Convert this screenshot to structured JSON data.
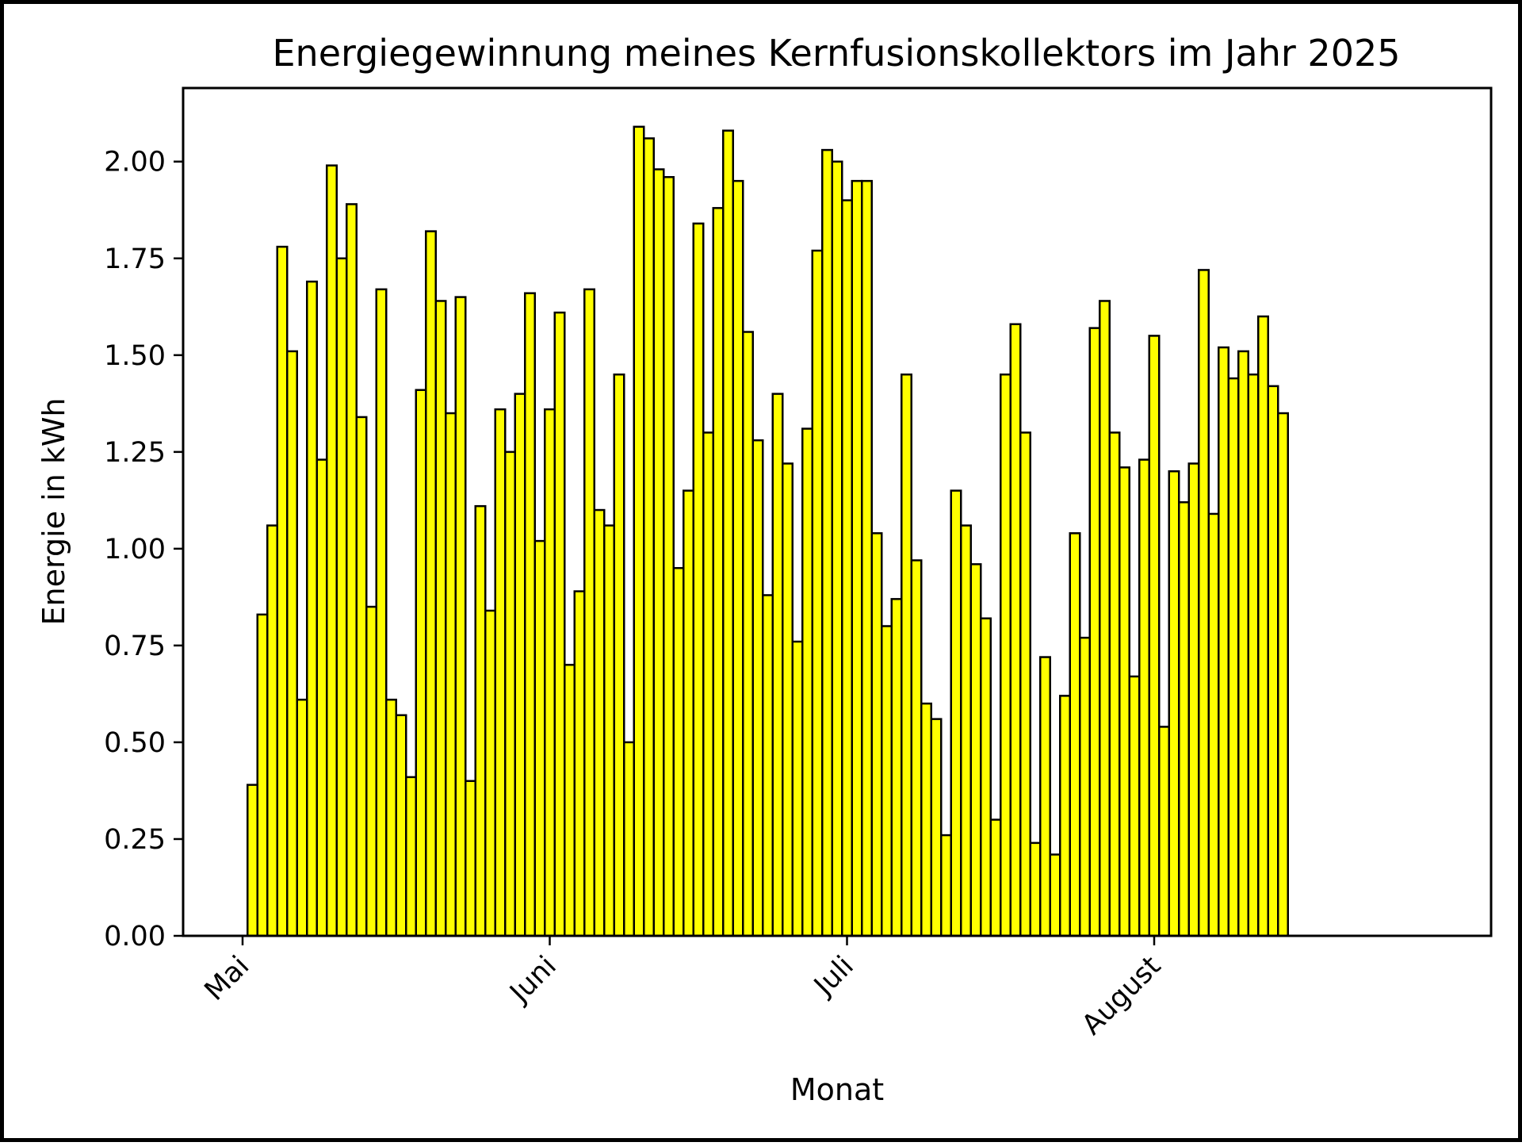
{
  "chart_data": {
    "type": "bar",
    "title": "Energiegewinnung meines Kernfusionskollektors im Jahr 2025",
    "xlabel": "Monat",
    "ylabel": "Energie in kWh",
    "start_date": "2025-05-01",
    "x_ticks": [
      {
        "label": "Mai",
        "date": "2025-05-01"
      },
      {
        "label": "Juni",
        "date": "2025-06-01"
      },
      {
        "label": "Juli",
        "date": "2025-07-01"
      },
      {
        "label": "August",
        "date": "2025-08-01"
      }
    ],
    "y_ticks": [
      "0.00",
      "0.25",
      "0.50",
      "0.75",
      "1.00",
      "1.25",
      "1.50",
      "1.75",
      "2.00"
    ],
    "ylim": [
      0,
      2.19
    ],
    "xlim": [
      "2025-04-25",
      "2025-09-04"
    ],
    "grid": false,
    "bar_color": "#ffff00",
    "edge_color": "#000000",
    "values": [
      0.0,
      0.39,
      0.83,
      1.06,
      1.78,
      1.51,
      0.61,
      1.69,
      1.23,
      1.99,
      1.75,
      1.89,
      1.34,
      0.85,
      1.67,
      0.61,
      0.57,
      0.41,
      1.41,
      1.82,
      1.64,
      1.35,
      1.65,
      0.4,
      1.11,
      0.84,
      1.36,
      1.25,
      1.4,
      1.66,
      1.02,
      1.36,
      1.61,
      0.7,
      0.89,
      1.67,
      1.1,
      1.06,
      1.45,
      0.5,
      2.09,
      2.06,
      1.98,
      1.96,
      0.95,
      1.15,
      1.84,
      1.3,
      1.88,
      2.08,
      1.95,
      1.56,
      1.28,
      0.88,
      1.4,
      1.22,
      0.76,
      1.31,
      1.77,
      2.03,
      2.0,
      1.9,
      1.95,
      1.95,
      1.04,
      0.8,
      0.87,
      1.45,
      0.97,
      0.6,
      0.56,
      0.26,
      1.15,
      1.06,
      0.96,
      0.82,
      0.3,
      1.45,
      1.58,
      1.3,
      0.24,
      0.72,
      0.21,
      0.62,
      1.04,
      0.77,
      1.57,
      1.64,
      1.3,
      1.21,
      0.67,
      1.23,
      1.55,
      0.54,
      1.2,
      1.12,
      1.22,
      1.72,
      1.09,
      1.52,
      1.44,
      1.51,
      1.45,
      1.6,
      1.42,
      1.35
    ]
  }
}
